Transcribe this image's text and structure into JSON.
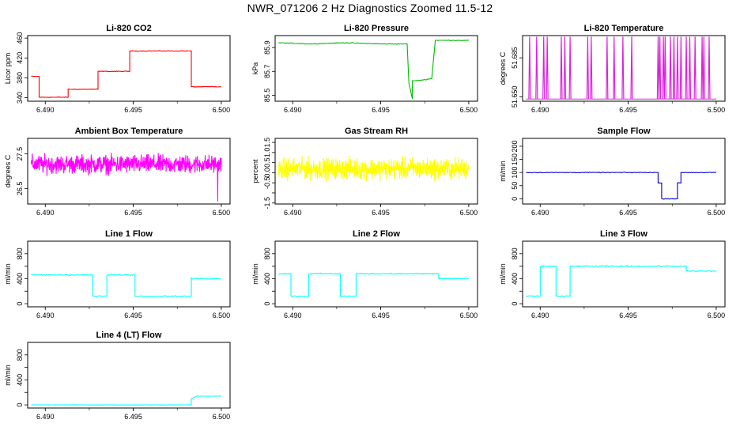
{
  "figure": {
    "title": "NWR_071206  2 Hz Diagnostics Zoomed 11.5-12"
  },
  "chart_data": [
    {
      "type": "line",
      "title": "Li-820 CO2",
      "ylabel": "Licor ppm",
      "color": "#ff0000",
      "xlim": [
        6.489,
        6.5005
      ],
      "ylim": [
        333,
        465
      ],
      "xticks": [
        6.49,
        6.495,
        6.5
      ],
      "xtick_labels": [
        "6.490",
        "6.495",
        "6.500"
      ],
      "yticks": [
        340,
        380,
        420,
        460
      ],
      "ytick_labels": [
        "340",
        "380",
        "420",
        "460"
      ],
      "series": [
        {
          "x": [
            6.4892,
            6.48965,
            6.48965,
            6.4913,
            6.4913,
            6.493,
            6.493,
            6.4948,
            6.4948,
            6.4983,
            6.4983,
            6.5
          ],
          "y": [
            383,
            383,
            341,
            341,
            357,
            357,
            393,
            393,
            434,
            434,
            362,
            362
          ],
          "noise": 1
        }
      ]
    },
    {
      "type": "line",
      "title": "Li-820 Pressure",
      "ylabel": "kPa",
      "color": "#00bb00",
      "xlim": [
        6.489,
        6.5005
      ],
      "ylim": [
        85.45,
        86.0
      ],
      "xticks": [
        6.49,
        6.495,
        6.5
      ],
      "xtick_labels": [
        "6.490",
        "6.495",
        "6.500"
      ],
      "yticks": [
        85.5,
        85.7,
        85.9
      ],
      "ytick_labels": [
        "85.5",
        "85.7",
        "85.9"
      ],
      "series": [
        {
          "x": [
            6.4892,
            6.491,
            6.493,
            6.495,
            6.4965,
            6.4966,
            6.4968,
            6.4968,
            6.4975,
            6.4979,
            6.4981,
            6.499,
            6.5
          ],
          "y": [
            85.94,
            85.93,
            85.94,
            85.93,
            85.93,
            85.6,
            85.47,
            85.62,
            85.63,
            85.64,
            85.96,
            85.96,
            85.96
          ],
          "noise": 0.004
        }
      ]
    },
    {
      "type": "line",
      "title": "Li-820 Temperature",
      "ylabel": "degrees C",
      "color": "#dd22dd",
      "xlim": [
        6.489,
        6.5005
      ],
      "ylim": [
        51.646,
        51.705
      ],
      "xticks": [
        6.49,
        6.495,
        6.5
      ],
      "xtick_labels": [
        "6.490",
        "6.495",
        "6.500"
      ],
      "yticks": [
        51.65,
        51.685
      ],
      "ytick_labels": [
        "51.650",
        "51.685"
      ],
      "series": [
        {
          "baseline": 51.648,
          "spike_top": 51.704,
          "spike_x": [
            6.4894,
            6.4898,
            6.4902,
            6.4904,
            6.4912,
            6.4914,
            6.4917,
            6.4927,
            6.4929,
            6.4938,
            6.4942,
            6.4947,
            6.4952,
            6.4967,
            6.4968,
            6.497,
            6.4971,
            6.4974,
            6.4976,
            6.4978,
            6.498,
            6.4983,
            6.4985,
            6.4988,
            6.4992,
            6.4993,
            6.4996
          ]
        }
      ]
    },
    {
      "type": "line",
      "title": "Ambient Box Temperature",
      "ylabel": "degrees C",
      "color": "#ff00ff",
      "xlim": [
        6.489,
        6.5005
      ],
      "ylim": [
        26.05,
        27.95
      ],
      "xticks": [
        6.49,
        6.495,
        6.5
      ],
      "xtick_labels": [
        "6.490",
        "6.495",
        "6.500"
      ],
      "yticks": [
        26.5,
        27.5
      ],
      "ytick_labels": [
        "26.5",
        "27.5"
      ],
      "series": [
        {
          "mean": 27.2,
          "amplitude": 0.28,
          "min": 26.12,
          "max": 27.86,
          "min_x": 6.4998
        }
      ]
    },
    {
      "type": "line",
      "title": "Gas Stream RH",
      "ylabel": "percent",
      "color": "#ffff00",
      "xlim": [
        6.489,
        6.5005
      ],
      "ylim": [
        -1.55,
        1.7
      ],
      "xticks": [
        6.49,
        6.495,
        6.5
      ],
      "xtick_labels": [
        "6.490",
        "6.495",
        "6.500"
      ],
      "yticks": [
        -1.5,
        -0.5,
        0.5,
        1.5
      ],
      "ytick_labels": [
        "-1.5",
        "-0.5",
        "0.5",
        "1.5"
      ],
      "yticks_minor": [
        -1.0,
        0.0,
        1.0
      ],
      "ytick_labels_minor": [
        "",
        "0.0",
        "1.0"
      ],
      "series": [
        {
          "mean": 0.2,
          "amplitude": 0.55,
          "min": -1.45,
          "max": 1.5
        }
      ]
    },
    {
      "type": "line",
      "title": "Sample Flow",
      "ylabel": "ml/min",
      "color": "#0000cc",
      "xlim": [
        6.489,
        6.5005
      ],
      "ylim": [
        -20,
        230
      ],
      "xticks": [
        6.49,
        6.495,
        6.5
      ],
      "xtick_labels": [
        "6.490",
        "6.495",
        "6.500"
      ],
      "yticks": [
        0,
        50,
        100,
        150,
        200
      ],
      "ytick_labels": [
        "0",
        "50",
        "100",
        "150",
        "200"
      ],
      "series": [
        {
          "x": [
            6.4892,
            6.4967,
            6.4967,
            6.4969,
            6.4969,
            6.4978,
            6.4978,
            6.498,
            6.498,
            6.5
          ],
          "y": [
            100,
            100,
            60,
            60,
            0,
            0,
            60,
            60,
            100,
            100
          ],
          "noise": 2
        }
      ]
    },
    {
      "type": "line",
      "title": "Line 1 Flow",
      "ylabel": "ml/min",
      "color": "#00ffff",
      "xlim": [
        6.489,
        6.5005
      ],
      "ylim": [
        -50,
        1000
      ],
      "xticks": [
        6.49,
        6.495,
        6.5
      ],
      "xtick_labels": [
        "6.490",
        "6.495",
        "6.500"
      ],
      "yticks": [
        0,
        400,
        800
      ],
      "ytick_labels": [
        "0",
        "400",
        "800"
      ],
      "yticks_minor": [
        200,
        600
      ],
      "series": [
        {
          "x": [
            6.4892,
            6.4927,
            6.4927,
            6.4935,
            6.4935,
            6.4951,
            6.4951,
            6.4983,
            6.4983,
            6.5
          ],
          "y": [
            460,
            460,
            120,
            120,
            460,
            460,
            120,
            120,
            400,
            400
          ],
          "noise": 12
        }
      ]
    },
    {
      "type": "line",
      "title": "Line 2 Flow",
      "ylabel": "ml/min",
      "color": "#00ffff",
      "xlim": [
        6.489,
        6.5005
      ],
      "ylim": [
        -50,
        1000
      ],
      "xticks": [
        6.49,
        6.495,
        6.5
      ],
      "xtick_labels": [
        "6.490",
        "6.495",
        "6.500"
      ],
      "yticks": [
        0,
        400,
        800
      ],
      "ytick_labels": [
        "0",
        "400",
        "800"
      ],
      "yticks_minor": [
        200,
        600
      ],
      "series": [
        {
          "x": [
            6.4892,
            6.4899,
            6.4899,
            6.4909,
            6.4909,
            6.4927,
            6.4927,
            6.4936,
            6.4936,
            6.4983,
            6.4983,
            6.5
          ],
          "y": [
            480,
            480,
            120,
            120,
            480,
            480,
            120,
            120,
            480,
            480,
            400,
            400
          ],
          "noise": 12
        }
      ]
    },
    {
      "type": "line",
      "title": "Line 3 Flow",
      "ylabel": "ml/min",
      "color": "#00ffff",
      "xlim": [
        6.489,
        6.5005
      ],
      "ylim": [
        -50,
        1000
      ],
      "xticks": [
        6.49,
        6.495,
        6.5
      ],
      "xtick_labels": [
        "6.490",
        "6.495",
        "6.500"
      ],
      "yticks": [
        0,
        400,
        800
      ],
      "ytick_labels": [
        "0",
        "400",
        "800"
      ],
      "yticks_minor": [
        200,
        600
      ],
      "series": [
        {
          "x": [
            6.4892,
            6.49,
            6.49,
            6.4909,
            6.4909,
            6.4917,
            6.4917,
            6.4983,
            6.4983,
            6.5
          ],
          "y": [
            120,
            120,
            600,
            600,
            120,
            120,
            600,
            600,
            520,
            520
          ],
          "noise": 14
        }
      ]
    },
    {
      "type": "line",
      "title": "Line 4 (LT) Flow",
      "ylabel": "ml/min",
      "color": "#00ffff",
      "xlim": [
        6.489,
        6.5005
      ],
      "ylim": [
        -50,
        1000
      ],
      "xticks": [
        6.49,
        6.495,
        6.5
      ],
      "xtick_labels": [
        "6.490",
        "6.495",
        "6.500"
      ],
      "yticks": [
        0,
        400,
        800
      ],
      "ytick_labels": [
        "0",
        "400",
        "800"
      ],
      "yticks_minor": [
        200,
        600
      ],
      "series": [
        {
          "x": [
            6.4892,
            6.4983,
            6.4983,
            6.4986,
            6.5
          ],
          "y": [
            0,
            0,
            100,
            140,
            140
          ],
          "noise": 3
        }
      ]
    }
  ]
}
